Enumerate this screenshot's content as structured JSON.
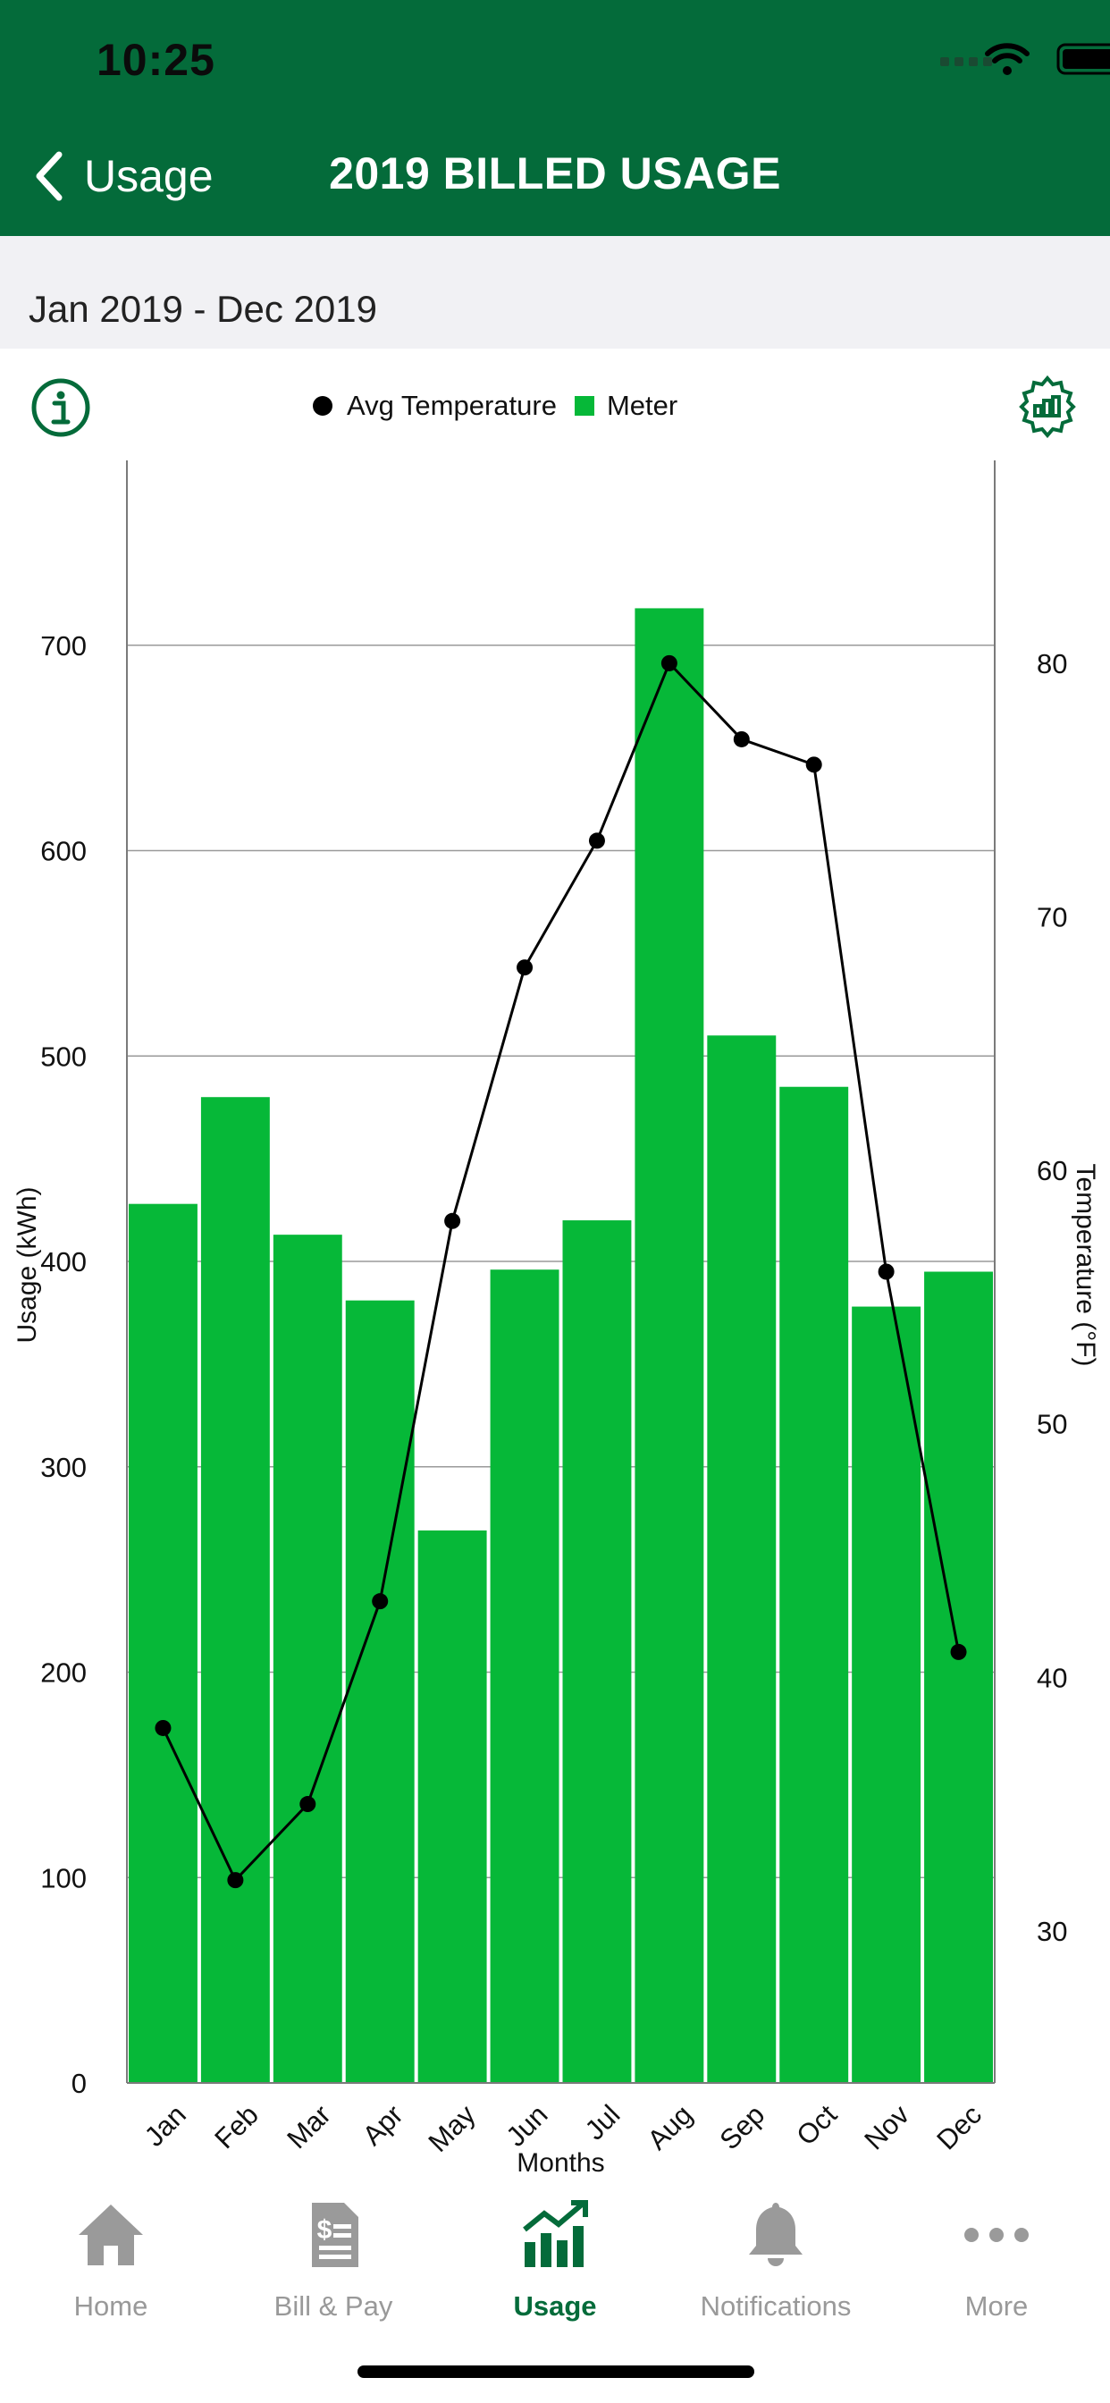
{
  "status": {
    "time": "10:25"
  },
  "nav": {
    "back_label": "Usage",
    "title": "2019 BILLED USAGE"
  },
  "date_range": "Jan 2019 - Dec 2019",
  "legend": {
    "line_label": "Avg Temperature",
    "bar_label": "Meter"
  },
  "icons": {
    "info": "info-icon",
    "settings": "chart-settings-icon"
  },
  "colors": {
    "header": "#046b3a",
    "bar": "#06b838",
    "line": "#000000",
    "tab_active": "#046b3a",
    "tab_inactive": "#999999"
  },
  "chart_data": {
    "type": "bar",
    "categories": [
      "Jan",
      "Feb",
      "Mar",
      "Apr",
      "May",
      "Jun",
      "Jul",
      "Aug",
      "Sep",
      "Oct",
      "Nov",
      "Dec"
    ],
    "series": [
      {
        "name": "Meter",
        "type": "bar",
        "axis": "left",
        "values": [
          428,
          480,
          413,
          381,
          269,
          396,
          420,
          718,
          510,
          485,
          378,
          395
        ]
      },
      {
        "name": "Avg Temperature",
        "type": "line",
        "axis": "right",
        "values": [
          38,
          32,
          35,
          43,
          58,
          68,
          73,
          80,
          77,
          76,
          56,
          41
        ]
      }
    ],
    "xlabel": "Months",
    "ylabel": "Usage (kWh)",
    "y2label": "Temperature (°F)",
    "ylim": [
      0,
      790
    ],
    "yticks": [
      0,
      100,
      200,
      300,
      400,
      500,
      600,
      700
    ],
    "y2lim": [
      24,
      88
    ],
    "y2ticks": [
      30,
      40,
      50,
      60,
      70,
      80
    ],
    "grid": true
  },
  "tabs": [
    {
      "label": "Home",
      "icon": "home-icon",
      "active": false
    },
    {
      "label": "Bill & Pay",
      "icon": "bill-pay-icon",
      "active": false
    },
    {
      "label": "Usage",
      "icon": "usage-chart-icon",
      "active": true
    },
    {
      "label": "Notifications",
      "icon": "bell-icon",
      "active": false
    },
    {
      "label": "More",
      "icon": "more-icon",
      "active": false
    }
  ]
}
